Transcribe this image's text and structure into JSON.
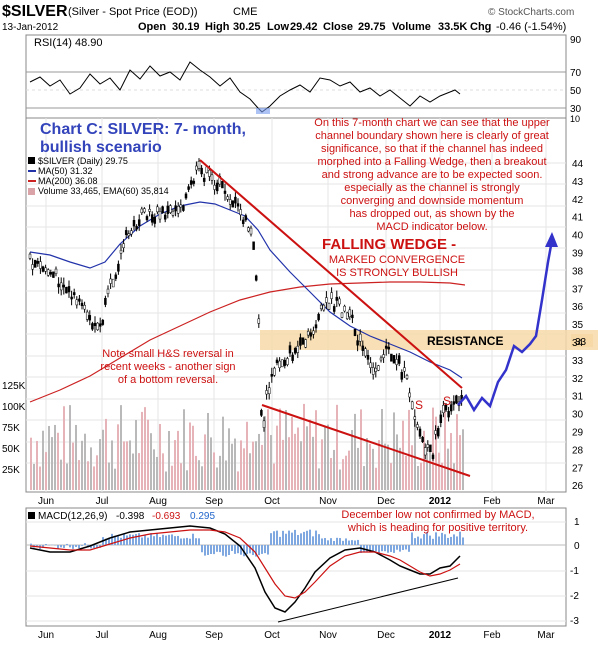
{
  "header": {
    "symbol": "$SILVER",
    "description": "(Silver - Spot Price (EOD))",
    "exchange": "CME",
    "watermark": "© StockCharts.com",
    "date": "13-Jan-2012",
    "open_label": "Open",
    "open": "30.19",
    "high_label": "High",
    "high": "30.25",
    "low_label": "Low",
    "low": "29.42",
    "close_label": "Close",
    "close": "29.75",
    "volume_label": "Volume",
    "volume": "33.5K",
    "chg_label": "Chg",
    "chg": "-0.46 (-1.54%)"
  },
  "rsi": {
    "label": "RSI(14) 48.90",
    "ticks": [
      "70",
      "50",
      "30",
      "90",
      "10"
    ],
    "value": 48.9
  },
  "price_panel": {
    "legend": [
      {
        "text": "$SILVER (Daily) 29.75",
        "color": "#000000"
      },
      {
        "text": "MA(50) 31.32",
        "color": "#2233aa"
      },
      {
        "text": "MA(200) 36.08",
        "color": "#cc2222"
      },
      {
        "text": "Volume 33,465, EMA(60) 35,814",
        "color": "#333333"
      }
    ],
    "title_line1": "Chart C: SILVER: 7- month,",
    "title_line2": "bullish scenario",
    "commentary": [
      "On this 7-month chart we can see that the upper",
      "channel boundary shown here is clearly of great",
      "significance, so that if the channel has indeed",
      "morphed into a Falling Wedge, then a breakout",
      "and strong advance are to be expected soon.",
      "especially as the channel is strongly",
      "converging and downside momentum",
      "has dropped out, as shown by the",
      "MACD indicator below."
    ],
    "wedge_title": "FALLING WEDGE -",
    "wedge_sub1": "MARKED CONVERGENCE",
    "wedge_sub2": "IS STRONGLY BULLISH",
    "resistance": "RESISTANCE",
    "hs_note": [
      "Note small H&S reversal in",
      "recent weeks - another sign",
      "of a bottom reversal."
    ],
    "shoulder_marks": [
      "S",
      "S"
    ],
    "price_ticks": [
      "44",
      "43",
      "42",
      "41",
      "40",
      "39",
      "38",
      "37",
      "36",
      "35",
      "34",
      "33",
      "32",
      "31",
      "30",
      "29",
      "28",
      "27",
      "26"
    ],
    "volume_ticks": [
      "125K",
      "100K",
      "75K",
      "50K",
      "25K"
    ],
    "last_price_tag": "33"
  },
  "months": [
    "Jun",
    "Jul",
    "Aug",
    "Sep",
    "Oct",
    "Nov",
    "Dec",
    "2012",
    "Feb",
    "Mar"
  ],
  "macd": {
    "label_main": "MACD(12,26,9)",
    "value1": "-0.398",
    "value2": "-0.693",
    "value3": "0.295",
    "ticks": [
      "1",
      "0",
      "-1",
      "-2",
      "-3"
    ],
    "note": [
      "December low not confirmed by MACD,",
      "which is heading for positive territory."
    ]
  },
  "chart_data": {
    "type": "candlestick",
    "ylim": [
      26,
      45
    ],
    "series_keypoints": [
      {
        "name": "$SILVER",
        "points": [
          [
            "Jun",
            35.5
          ],
          [
            "Jul",
            34.5
          ],
          [
            "Aug",
            40.5
          ],
          [
            "late-Aug",
            44.0
          ],
          [
            "Sep",
            40.5
          ],
          [
            "late-Sep",
            26.5
          ],
          [
            "Oct",
            32.0
          ],
          [
            "Nov",
            35.0
          ],
          [
            "Dec",
            32.0
          ],
          [
            "late-Dec",
            27.0
          ],
          [
            "2012",
            29.75
          ]
        ]
      },
      {
        "name": "MA(50)",
        "points": [
          [
            "Jun",
            36.0
          ],
          [
            "Aug",
            38.0
          ],
          [
            "Sep",
            40.5
          ],
          [
            "Nov",
            35.5
          ],
          [
            "2012",
            31.32
          ]
        ]
      },
      {
        "name": "MA(200)",
        "points": [
          [
            "Jun",
            28.0
          ],
          [
            "Aug",
            32.5
          ],
          [
            "Oct",
            35.5
          ],
          [
            "Dec",
            36.5
          ],
          [
            "2012",
            36.08
          ]
        ]
      }
    ],
    "projection": [
      [
        "2012",
        29.75
      ],
      [
        "Feb",
        31.0
      ],
      [
        "mid-Feb",
        33.0
      ],
      [
        "Mar",
        38.5
      ]
    ],
    "resistance_band": [
      32.6,
      33.9
    ]
  }
}
